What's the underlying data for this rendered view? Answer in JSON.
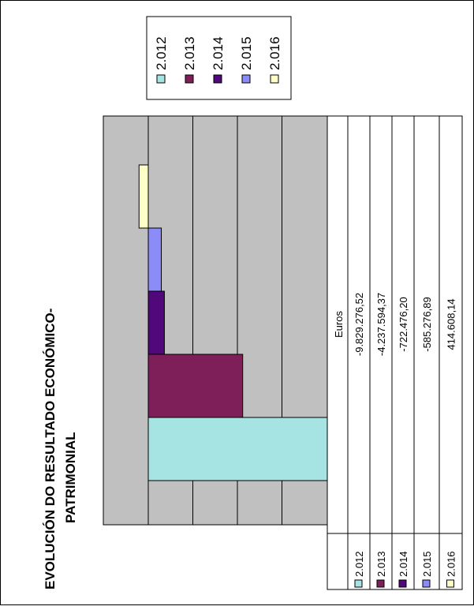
{
  "chart_data": {
    "type": "bar",
    "title": "EVOLUCIÓN DO RESULTADO ECONÓMICO-PATRIMONIAL",
    "title_lines": [
      "EVOLUCIÓN DO RESULTADO ECONÓMICO-",
      "PATRIMONIAL"
    ],
    "categories": [
      "2.012",
      "2.013",
      "2.014",
      "2.015",
      "2.016"
    ],
    "series_label": "Euros",
    "values": [
      -9829276.52,
      -4237594.37,
      -722476.2,
      -585276.89,
      414608.14
    ],
    "value_labels": [
      "-9.829.276,52",
      "-4.237.594,37",
      "-722.476,20",
      "-585.276,89",
      "414.608,14"
    ],
    "colors": [
      "#a6e3e3",
      "#7f1f5a",
      "#50087a",
      "#8c8cf8",
      "#ffffc8"
    ],
    "ylim": [
      -10000000,
      0
    ],
    "grid": true,
    "legend": {
      "position": "top-right",
      "items": [
        "2.012",
        "2.013",
        "2.014",
        "2.015",
        "2.016"
      ]
    }
  }
}
